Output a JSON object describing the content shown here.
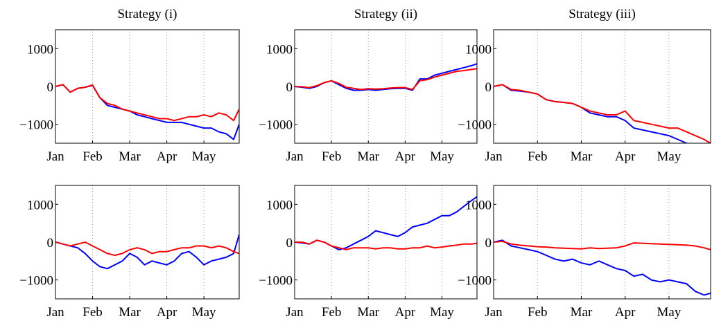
{
  "chart_data": [
    {
      "type": "line",
      "title": "Strategy (i)",
      "x": [
        1.0,
        1.2,
        1.4,
        1.6,
        1.8,
        2.0,
        2.2,
        2.4,
        2.6,
        2.8,
        3.0,
        3.2,
        3.4,
        3.6,
        3.8,
        4.0,
        4.2,
        4.4,
        4.6,
        4.8,
        5.0,
        5.2,
        5.4,
        5.6,
        5.8,
        5.95
      ],
      "xlim": [
        1,
        5.95
      ],
      "xticks": [
        {
          "value": 1,
          "label": "Jan"
        },
        {
          "value": 2,
          "label": "Feb"
        },
        {
          "value": 3,
          "label": "Mar"
        },
        {
          "value": 4,
          "label": "Apr"
        },
        {
          "value": 5,
          "label": "May"
        }
      ],
      "ylim": [
        -1500,
        1500
      ],
      "yticks": [
        {
          "value": -1000,
          "label": "−1000"
        },
        0,
        1000
      ],
      "grid": true,
      "series": [
        {
          "color": "#0000ff",
          "values": [
            0,
            50,
            -150,
            -50,
            -20,
            30,
            -300,
            -500,
            -550,
            -600,
            -650,
            -750,
            -800,
            -850,
            -900,
            -950,
            -950,
            -950,
            -1000,
            -1050,
            -1100,
            -1100,
            -1200,
            -1250,
            -1400,
            -1000
          ]
        },
        {
          "color": "#ff0000",
          "values": [
            0,
            50,
            -150,
            -50,
            -20,
            40,
            -300,
            -450,
            -500,
            -600,
            -650,
            -700,
            -750,
            -800,
            -850,
            -850,
            -900,
            -850,
            -800,
            -800,
            -750,
            -800,
            -700,
            -750,
            -900,
            -600
          ]
        }
      ]
    },
    {
      "type": "line",
      "title": "Strategy (ii)",
      "x": [
        1.0,
        1.2,
        1.4,
        1.6,
        1.8,
        2.0,
        2.2,
        2.4,
        2.6,
        2.8,
        3.0,
        3.2,
        3.4,
        3.6,
        3.8,
        4.0,
        4.2,
        4.4,
        4.6,
        4.8,
        5.0,
        5.2,
        5.4,
        5.6,
        5.8,
        5.95
      ],
      "xlim": [
        1,
        5.95
      ],
      "xticks": [
        {
          "value": 1,
          "label": "Jan"
        },
        {
          "value": 2,
          "label": "Feb"
        },
        {
          "value": 3,
          "label": "Mar"
        },
        {
          "value": 4,
          "label": "Apr"
        },
        {
          "value": 5,
          "label": "May"
        }
      ],
      "ylim": [
        -1500,
        1500
      ],
      "yticks": [
        {
          "value": -1000,
          "label": "−1000"
        },
        0,
        1000
      ],
      "grid": true,
      "series": [
        {
          "color": "#0000ff",
          "values": [
            0,
            -20,
            -50,
            0,
            100,
            150,
            50,
            -50,
            -100,
            -100,
            -80,
            -100,
            -80,
            -60,
            -50,
            -50,
            -100,
            200,
            200,
            300,
            350,
            400,
            450,
            500,
            550,
            600
          ]
        },
        {
          "color": "#ff0000",
          "values": [
            0,
            -10,
            -30,
            20,
            100,
            150,
            80,
            -20,
            -50,
            -80,
            -60,
            -70,
            -60,
            -40,
            -30,
            -30,
            -80,
            150,
            180,
            250,
            300,
            350,
            400,
            420,
            450,
            470
          ]
        }
      ]
    },
    {
      "type": "line",
      "title": "Strategy (iii)",
      "x": [
        1.0,
        1.2,
        1.4,
        1.6,
        1.8,
        2.0,
        2.2,
        2.4,
        2.6,
        2.8,
        3.0,
        3.2,
        3.4,
        3.6,
        3.8,
        4.0,
        4.2,
        4.4,
        4.6,
        4.8,
        5.0,
        5.2,
        5.4,
        5.6,
        5.8,
        5.95
      ],
      "xlim": [
        1,
        5.95
      ],
      "xticks": [
        {
          "value": 1,
          "label": "Jan"
        },
        {
          "value": 2,
          "label": "Feb"
        },
        {
          "value": 3,
          "label": "Mar"
        },
        {
          "value": 4,
          "label": "Apr"
        },
        {
          "value": 5,
          "label": "May"
        }
      ],
      "ylim": [
        -1500,
        1500
      ],
      "yticks": [
        {
          "value": -1000,
          "label": "−1000"
        },
        0,
        1000
      ],
      "grid": true,
      "series": [
        {
          "color": "#0000ff",
          "values": [
            0,
            50,
            -100,
            -120,
            -150,
            -200,
            -350,
            -400,
            -420,
            -450,
            -550,
            -700,
            -750,
            -800,
            -800,
            -900,
            -1100,
            -1150,
            -1200,
            -1250,
            -1300,
            -1400,
            -1500,
            -1550,
            -1600,
            -1650
          ]
        },
        {
          "color": "#ff0000",
          "values": [
            0,
            50,
            -80,
            -100,
            -150,
            -200,
            -350,
            -400,
            -420,
            -450,
            -550,
            -650,
            -700,
            -750,
            -750,
            -650,
            -900,
            -950,
            -1000,
            -1050,
            -1100,
            -1100,
            -1200,
            -1300,
            -1400,
            -1500
          ]
        }
      ]
    },
    {
      "type": "line",
      "x": [
        1.0,
        1.2,
        1.4,
        1.6,
        1.8,
        2.0,
        2.2,
        2.4,
        2.6,
        2.8,
        3.0,
        3.2,
        3.4,
        3.6,
        3.8,
        4.0,
        4.2,
        4.4,
        4.6,
        4.8,
        5.0,
        5.2,
        5.4,
        5.6,
        5.8,
        5.95
      ],
      "xlim": [
        1,
        5.95
      ],
      "xticks": [
        {
          "value": 1,
          "label": "Jan"
        },
        {
          "value": 2,
          "label": "Feb"
        },
        {
          "value": 3,
          "label": "Mar"
        },
        {
          "value": 4,
          "label": "Apr"
        },
        {
          "value": 5,
          "label": "May"
        }
      ],
      "ylim": [
        -1500,
        1500
      ],
      "yticks": [
        {
          "value": -1000,
          "label": "−1000"
        },
        0,
        1000
      ],
      "grid": true,
      "series": [
        {
          "color": "#0000ff",
          "values": [
            0,
            -50,
            -100,
            -150,
            -300,
            -500,
            -650,
            -700,
            -600,
            -500,
            -300,
            -400,
            -600,
            -500,
            -550,
            -600,
            -500,
            -300,
            -250,
            -400,
            -600,
            -500,
            -450,
            -400,
            -300,
            200
          ]
        },
        {
          "color": "#ff0000",
          "values": [
            0,
            -50,
            -100,
            -50,
            0,
            -100,
            -200,
            -300,
            -350,
            -300,
            -200,
            -150,
            -200,
            -300,
            -250,
            -250,
            -200,
            -150,
            -150,
            -100,
            -100,
            -150,
            -100,
            -150,
            -250,
            -300
          ]
        }
      ]
    },
    {
      "type": "line",
      "x": [
        1.0,
        1.2,
        1.4,
        1.6,
        1.8,
        2.0,
        2.2,
        2.4,
        2.6,
        2.8,
        3.0,
        3.2,
        3.4,
        3.6,
        3.8,
        4.0,
        4.2,
        4.4,
        4.6,
        4.8,
        5.0,
        5.2,
        5.4,
        5.6,
        5.8,
        5.95
      ],
      "xlim": [
        1,
        5.95
      ],
      "xticks": [
        {
          "value": 1,
          "label": "Jan"
        },
        {
          "value": 2,
          "label": "Feb"
        },
        {
          "value": 3,
          "label": "Mar"
        },
        {
          "value": 4,
          "label": "Apr"
        },
        {
          "value": 5,
          "label": "May"
        }
      ],
      "ylim": [
        -1500,
        1500
      ],
      "yticks": [
        {
          "value": -1000,
          "label": "−1000"
        },
        0,
        1000
      ],
      "grid": true,
      "series": [
        {
          "color": "#0000ff",
          "values": [
            0,
            -20,
            -50,
            50,
            0,
            -100,
            -200,
            -150,
            -50,
            50,
            150,
            300,
            250,
            200,
            150,
            250,
            400,
            450,
            500,
            600,
            700,
            700,
            800,
            950,
            1100,
            1200
          ]
        },
        {
          "color": "#ff0000",
          "values": [
            0,
            0,
            -50,
            50,
            0,
            -100,
            -150,
            -200,
            -150,
            -150,
            -150,
            -180,
            -150,
            -150,
            -180,
            -180,
            -150,
            -150,
            -100,
            -150,
            -130,
            -100,
            -80,
            -50,
            -50,
            -30
          ]
        }
      ]
    },
    {
      "type": "line",
      "x": [
        1.0,
        1.2,
        1.4,
        1.6,
        1.8,
        2.0,
        2.2,
        2.4,
        2.6,
        2.8,
        3.0,
        3.2,
        3.4,
        3.6,
        3.8,
        4.0,
        4.2,
        4.4,
        4.6,
        4.8,
        5.0,
        5.2,
        5.4,
        5.6,
        5.8,
        5.95
      ],
      "xlim": [
        1,
        5.95
      ],
      "xticks": [
        {
          "value": 1,
          "label": "Jan"
        },
        {
          "value": 2,
          "label": "Feb"
        },
        {
          "value": 3,
          "label": "Mar"
        },
        {
          "value": 4,
          "label": "Apr"
        },
        {
          "value": 5,
          "label": "May"
        }
      ],
      "ylim": [
        -1500,
        1500
      ],
      "yticks": [
        {
          "value": -1000,
          "label": "−1000"
        },
        0,
        1000
      ],
      "grid": true,
      "series": [
        {
          "color": "#0000ff",
          "values": [
            0,
            50,
            -100,
            -150,
            -200,
            -250,
            -350,
            -450,
            -500,
            -450,
            -550,
            -600,
            -500,
            -600,
            -700,
            -750,
            -900,
            -850,
            -1000,
            -1050,
            -1000,
            -1050,
            -1100,
            -1300,
            -1400,
            -1350
          ]
        },
        {
          "color": "#ff0000",
          "values": [
            0,
            20,
            -50,
            -80,
            -100,
            -120,
            -130,
            -150,
            -160,
            -170,
            -180,
            -150,
            -170,
            -160,
            -150,
            -100,
            -20,
            -30,
            -40,
            -50,
            -60,
            -70,
            -80,
            -100,
            -150,
            -200
          ]
        }
      ]
    }
  ]
}
